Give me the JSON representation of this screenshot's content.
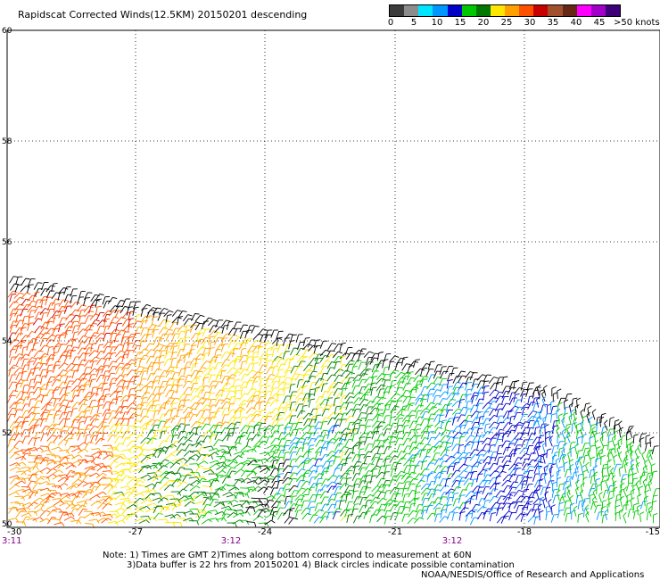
{
  "title": "Rapidscat Corrected Winds(12.5KM) 20150201 descending",
  "colorbar": {
    "colors": [
      "#3c3c3c",
      "#8c8c8c",
      "#00e5ff",
      "#0096ff",
      "#0000c8",
      "#00c800",
      "#007800",
      "#ffe600",
      "#ffa000",
      "#ff5000",
      "#c80000",
      "#a0502d",
      "#642814",
      "#ff00ff",
      "#a000c8",
      "#3c0078"
    ],
    "labels": [
      "0",
      "5",
      "10",
      "15",
      "20",
      "25",
      "30",
      "35",
      "40",
      "45"
    ],
    "unit": ">50 knots"
  },
  "map": {
    "lat_labels": [
      "60",
      "58",
      "56",
      "54",
      "52",
      "50"
    ],
    "lon_labels": [
      "-30",
      "-27",
      "-24",
      "-21",
      "-18",
      "-15"
    ],
    "time_labels": [
      "3:11",
      "3:12",
      "3:12"
    ]
  },
  "notes": {
    "line1": "Note: 1) Times are GMT 2)Times along bottom correspond to measurement at 60N",
    "line2": "3)Data buffer is 22 hrs from 20150201 4) Black circles indicate possible contamination",
    "credit": "NOAA/NESDIS/Office of Research and Applications"
  }
}
